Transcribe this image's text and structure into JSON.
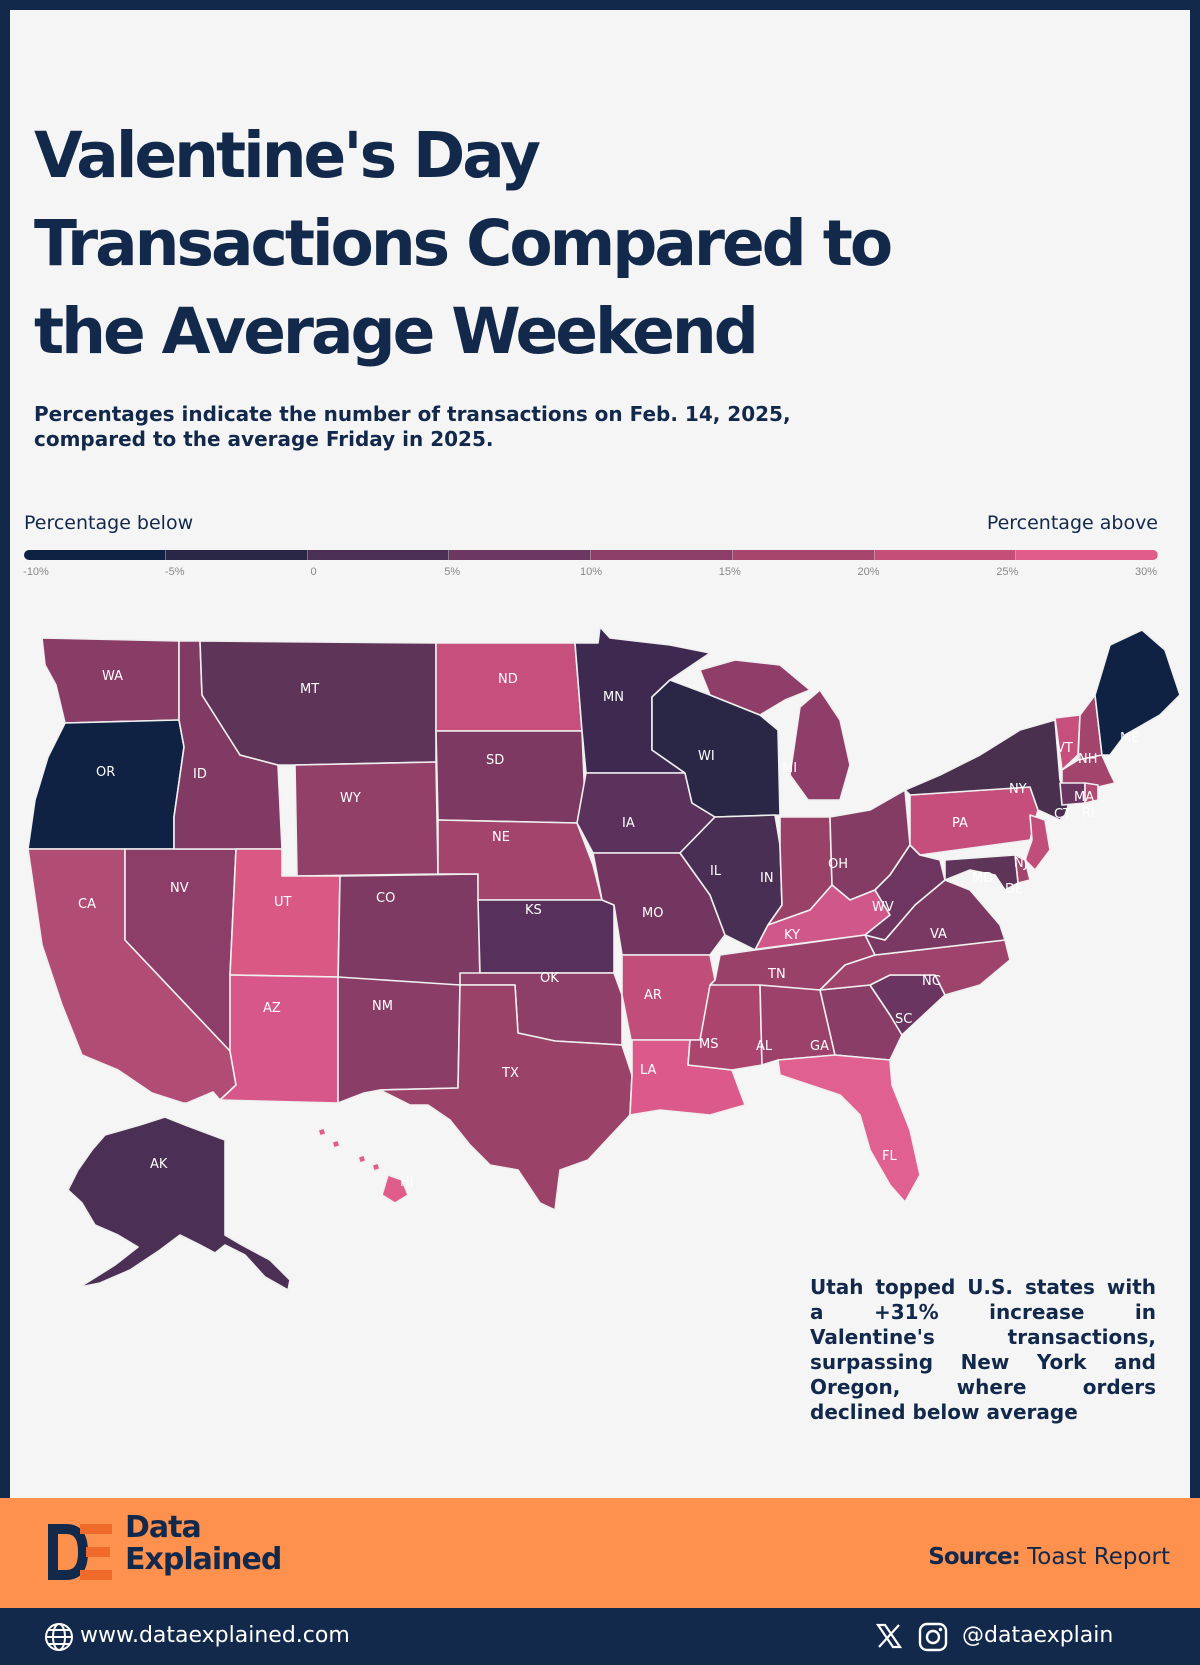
{
  "title": "Valentine's Day Transactions Compared to the Average Weekend",
  "subtitle": "Percentages indicate the number of transactions on Feb. 14, 2025, compared to the average Friday in 2025.",
  "legend": {
    "label_below": "Percentage below",
    "label_above": "Percentage above",
    "ticks": [
      "-10%",
      "-5%",
      "0",
      "5%",
      "10%",
      "15%",
      "20%",
      "25%",
      "30%"
    ],
    "colors": [
      "#0f2244",
      "#2a2645",
      "#4b2f55",
      "#6c3760",
      "#8c3e68",
      "#a8456d",
      "#c54e78",
      "#df5c8b"
    ]
  },
  "states": {
    "WA": "#883c66",
    "OR": "#0f2244",
    "CA": "#b14d74",
    "NV": "#8c3e68",
    "ID": "#813a64",
    "MT": "#5e3458",
    "WY": "#924068",
    "UT": "#d95984",
    "AZ": "#d7578a",
    "CO": "#7e3a62",
    "NM": "#8a3d67",
    "ND": "#c64f7c",
    "SD": "#7d3961",
    "NE": "#a3446c",
    "KS": "#57315b",
    "OK": "#8e3f68",
    "TX": "#9b4269",
    "MN": "#3e2a50",
    "IA": "#5a325c",
    "MO": "#733660",
    "AR": "#c14d79",
    "LA": "#dc5a8b",
    "WI": "#2a2645",
    "IL": "#4a2f55",
    "MI": "#8e3e68",
    "IN": "#9a4168",
    "OH": "#843b64",
    "KY": "#d0578a",
    "TN": "#9a416a",
    "MS": "#ac456e",
    "AL": "#9c416a",
    "GA": "#8a3d66",
    "FL": "#e0608f",
    "SC": "#6a3560",
    "NC": "#9e436c",
    "VA": "#7a3962",
    "WV": "#6e3560",
    "PA": "#c54e7b",
    "NY": "#49304f",
    "VT": "#c64f7c",
    "NH": "#a3446c",
    "ME": "#0f2244",
    "MA": "#a3446c",
    "CT": "#6a3560",
    "RI": "#b14d74",
    "NJ": "#c14d79",
    "DE": "#a3446c",
    "MD": "#5e3458",
    "AK": "#4b2f55",
    "HI": "#df5c8b"
  },
  "note": "Utah topped U.S. states with a +31% increase in Valentine's transactions, surpassing New York and Oregon, where orders declined below average",
  "brand": {
    "line1": "Data",
    "line2": "Explained"
  },
  "source": {
    "label": "Source:",
    "value": "Toast Report"
  },
  "footer": {
    "website": "www.dataexplained.com",
    "handle": "@dataexplain"
  }
}
